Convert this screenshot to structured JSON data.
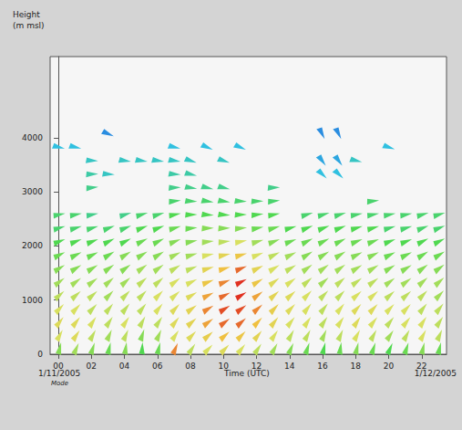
{
  "chart_data": {
    "type": "wind_barbs",
    "ylabel": [
      "Height",
      "(m msl)"
    ],
    "xlabel": "Time (UTC)",
    "annotations": [
      "1/11/2005",
      "Mode",
      "1/12/2005"
    ],
    "x": [
      0,
      1,
      2,
      3,
      4,
      5,
      6,
      7,
      8,
      9,
      10,
      11,
      12,
      13,
      14,
      15,
      16,
      17,
      18,
      19,
      20,
      21,
      22,
      23
    ],
    "heights": [
      100,
      350,
      600,
      850,
      1100,
      1350,
      1600,
      1850,
      2100,
      2350,
      2600,
      2850,
      3100,
      3350,
      3600,
      3850,
      4100
    ],
    "speed": [
      [
        12,
        13,
        12,
        11,
        12,
        10,
        11,
        22,
        14,
        15,
        16,
        15,
        14,
        13,
        12,
        11,
        10,
        11,
        12,
        11,
        10,
        11,
        12,
        11
      ],
      [
        15,
        16,
        14,
        13,
        14,
        12,
        13,
        15,
        16,
        18,
        20,
        19,
        17,
        15,
        14,
        14,
        13,
        14,
        15,
        14,
        13,
        14,
        15,
        14
      ],
      [
        16,
        16,
        15,
        14,
        15,
        14,
        14,
        16,
        17,
        21,
        23,
        23,
        20,
        17,
        15,
        15,
        14,
        15,
        16,
        15,
        14,
        15,
        15,
        14
      ],
      [
        15,
        15,
        14,
        14,
        14,
        14,
        15,
        16,
        17,
        22,
        24,
        24,
        22,
        18,
        16,
        15,
        14,
        15,
        16,
        16,
        15,
        15,
        14,
        14
      ],
      [
        14,
        14,
        14,
        13,
        14,
        14,
        15,
        15,
        16,
        21,
        23,
        25,
        21,
        17,
        16,
        15,
        14,
        14,
        15,
        15,
        14,
        14,
        14,
        13
      ],
      [
        13,
        13,
        13,
        13,
        13,
        14,
        14,
        15,
        15,
        19,
        22,
        25,
        19,
        16,
        15,
        14,
        13,
        14,
        14,
        14,
        13,
        13,
        13,
        13
      ],
      [
        12,
        12,
        12,
        12,
        12,
        13,
        13,
        14,
        14,
        17,
        20,
        23,
        17,
        15,
        14,
        13,
        13,
        13,
        13,
        13,
        12,
        12,
        12,
        12
      ],
      [
        11,
        11,
        11,
        11,
        12,
        12,
        12,
        13,
        13,
        15,
        17,
        19,
        15,
        14,
        13,
        12,
        12,
        12,
        12,
        12,
        11,
        11,
        11,
        11
      ],
      [
        10,
        10,
        10,
        10,
        10,
        11,
        11,
        12,
        12,
        13,
        14,
        15,
        13,
        12,
        11,
        11,
        11,
        11,
        11,
        11,
        10,
        10,
        10,
        10
      ],
      [
        9,
        9,
        9,
        9,
        9,
        10,
        10,
        11,
        11,
        12,
        12,
        12,
        11,
        11,
        10,
        10,
        10,
        10,
        10,
        10,
        9,
        9,
        9,
        9
      ],
      [
        9,
        9,
        8,
        null,
        8,
        9,
        9,
        10,
        10,
        10,
        10,
        10,
        10,
        10,
        null,
        9,
        9,
        9,
        9,
        9,
        9,
        9,
        9,
        9
      ],
      [
        null,
        null,
        null,
        null,
        null,
        null,
        null,
        9,
        9,
        9,
        9,
        9,
        9,
        9,
        null,
        null,
        null,
        null,
        null,
        9,
        null,
        null,
        null,
        null
      ],
      [
        null,
        null,
        8,
        null,
        null,
        null,
        null,
        8,
        8,
        8,
        8,
        null,
        null,
        8,
        null,
        null,
        null,
        null,
        null,
        null,
        null,
        null,
        null,
        null
      ],
      [
        null,
        null,
        7,
        6,
        null,
        null,
        null,
        7,
        7,
        null,
        null,
        null,
        null,
        null,
        null,
        null,
        5,
        5,
        null,
        null,
        null,
        null,
        null,
        null
      ],
      [
        null,
        null,
        6,
        null,
        6,
        6,
        6,
        6,
        6,
        null,
        6,
        null,
        null,
        null,
        null,
        null,
        4,
        4,
        6,
        null,
        null,
        null,
        null,
        null
      ],
      [
        5,
        5,
        null,
        null,
        null,
        null,
        null,
        5,
        null,
        5,
        null,
        5,
        null,
        null,
        null,
        null,
        null,
        null,
        null,
        null,
        5,
        null,
        null,
        null
      ],
      [
        null,
        null,
        null,
        3,
        null,
        null,
        null,
        null,
        null,
        null,
        null,
        null,
        null,
        null,
        null,
        null,
        3,
        3,
        null,
        null,
        null,
        null,
        null,
        null
      ]
    ],
    "direction": [
      [
        180,
        190,
        185,
        180,
        175,
        170,
        180,
        190,
        200,
        210,
        210,
        205,
        200,
        195,
        190,
        185,
        180,
        175,
        180,
        185,
        190,
        185,
        180,
        180
      ],
      [
        195,
        200,
        195,
        190,
        190,
        185,
        190,
        200,
        210,
        215,
        215,
        210,
        205,
        200,
        195,
        195,
        190,
        190,
        195,
        195,
        200,
        195,
        195,
        190
      ],
      [
        205,
        205,
        200,
        200,
        200,
        195,
        200,
        205,
        215,
        220,
        220,
        215,
        210,
        205,
        205,
        200,
        200,
        200,
        200,
        205,
        205,
        205,
        200,
        200
      ],
      [
        210,
        210,
        210,
        205,
        205,
        205,
        205,
        210,
        220,
        225,
        225,
        220,
        215,
        210,
        210,
        205,
        205,
        205,
        210,
        210,
        210,
        210,
        205,
        205
      ],
      [
        215,
        215,
        215,
        210,
        210,
        210,
        210,
        215,
        225,
        230,
        230,
        225,
        220,
        215,
        215,
        210,
        210,
        210,
        215,
        215,
        215,
        215,
        210,
        210
      ],
      [
        220,
        220,
        220,
        215,
        215,
        215,
        215,
        220,
        230,
        235,
        235,
        230,
        225,
        220,
        220,
        215,
        215,
        215,
        220,
        220,
        220,
        220,
        215,
        215
      ],
      [
        225,
        225,
        225,
        220,
        220,
        220,
        220,
        225,
        235,
        240,
        240,
        235,
        230,
        225,
        225,
        220,
        220,
        220,
        225,
        225,
        225,
        225,
        220,
        220
      ],
      [
        230,
        230,
        230,
        225,
        225,
        225,
        225,
        230,
        240,
        245,
        245,
        240,
        235,
        230,
        230,
        225,
        225,
        225,
        230,
        230,
        230,
        230,
        225,
        225
      ],
      [
        235,
        235,
        235,
        230,
        230,
        230,
        230,
        235,
        245,
        250,
        250,
        245,
        240,
        235,
        235,
        230,
        230,
        230,
        235,
        235,
        235,
        235,
        230,
        230
      ],
      [
        240,
        240,
        240,
        235,
        235,
        235,
        235,
        240,
        250,
        255,
        255,
        250,
        245,
        240,
        240,
        235,
        235,
        235,
        240,
        240,
        240,
        240,
        235,
        235
      ],
      [
        245,
        245,
        245,
        null,
        240,
        240,
        240,
        245,
        255,
        260,
        260,
        255,
        250,
        245,
        null,
        240,
        240,
        240,
        245,
        245,
        245,
        245,
        240,
        240
      ],
      [
        null,
        null,
        null,
        null,
        null,
        null,
        null,
        250,
        260,
        265,
        265,
        260,
        255,
        250,
        null,
        null,
        null,
        null,
        null,
        250,
        null,
        null,
        null,
        null
      ],
      [
        null,
        null,
        250,
        null,
        null,
        null,
        null,
        255,
        265,
        270,
        270,
        null,
        null,
        255,
        null,
        null,
        null,
        null,
        null,
        null,
        null,
        null,
        null,
        null
      ],
      [
        null,
        null,
        255,
        260,
        null,
        null,
        null,
        260,
        270,
        null,
        null,
        null,
        null,
        null,
        null,
        null,
        300,
        300,
        null,
        null,
        null,
        null,
        null,
        null
      ],
      [
        null,
        null,
        260,
        null,
        265,
        265,
        265,
        265,
        275,
        null,
        275,
        null,
        null,
        null,
        null,
        null,
        310,
        310,
        270,
        null,
        null,
        null,
        null,
        null
      ],
      [
        270,
        270,
        null,
        null,
        null,
        null,
        null,
        270,
        null,
        280,
        null,
        280,
        null,
        null,
        null,
        null,
        null,
        null,
        null,
        null,
        275,
        null,
        null,
        null
      ],
      [
        null,
        null,
        null,
        280,
        null,
        null,
        null,
        null,
        null,
        null,
        null,
        null,
        null,
        null,
        null,
        null,
        320,
        320,
        null,
        null,
        null,
        null,
        null,
        null
      ]
    ],
    "color_scale": {
      "range": [
        0,
        25
      ],
      "colors": [
        "#2040e0",
        "#30c0e0",
        "#50d850",
        "#d8e060",
        "#f0c040",
        "#e03020"
      ]
    },
    "xlim": [
      -0.5,
      23.5
    ],
    "xticks": [
      {
        "value": 0,
        "label": "00"
      },
      {
        "value": 2,
        "label": "02"
      },
      {
        "value": 4,
        "label": "04"
      },
      {
        "value": 6,
        "label": "06"
      },
      {
        "value": 8,
        "label": "08"
      },
      {
        "value": 10,
        "label": "10"
      },
      {
        "value": 12,
        "label": "12"
      },
      {
        "value": 14,
        "label": "14"
      },
      {
        "value": 16,
        "label": "16"
      },
      {
        "value": 18,
        "label": "18"
      },
      {
        "value": 20,
        "label": "20"
      },
      {
        "value": 22,
        "label": "22"
      }
    ],
    "ylim": [
      0,
      5500
    ],
    "yticks": [
      0,
      1000,
      2000,
      3000,
      4000
    ],
    "grid": false
  }
}
